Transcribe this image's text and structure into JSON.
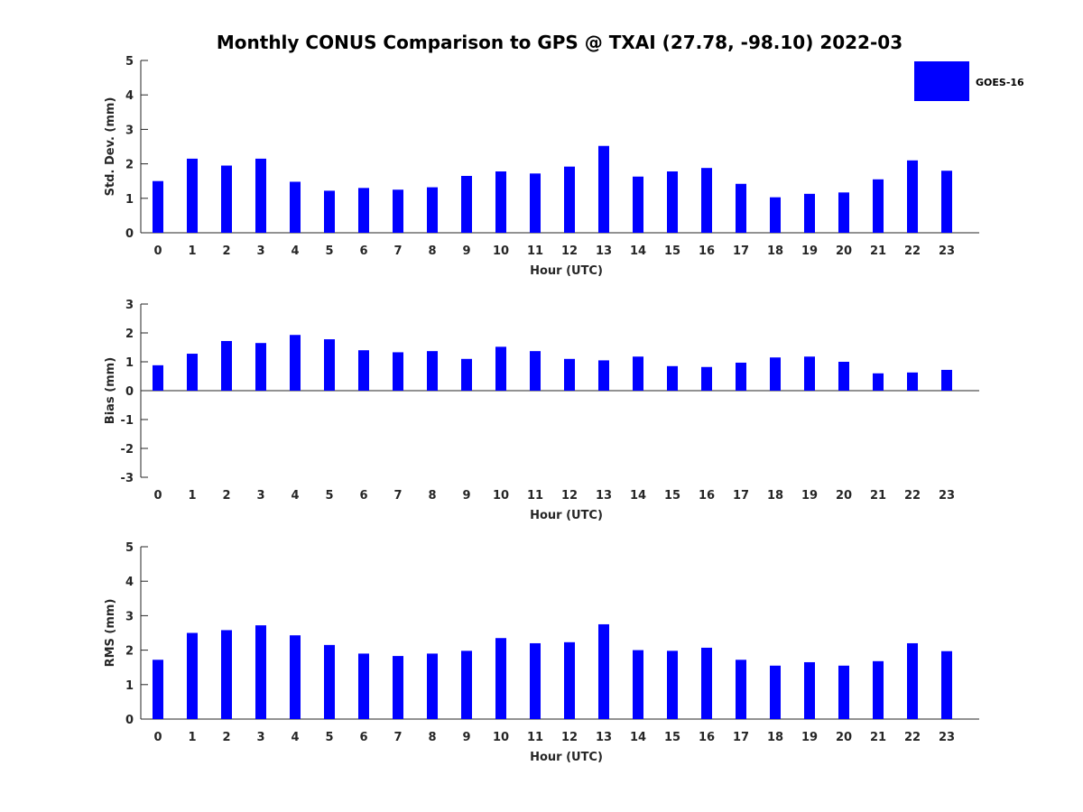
{
  "chart_data": [
    {
      "type": "bar",
      "title": "Monthly CONUS Comparison to GPS @ TXAI (27.78, -98.10) 2022-03",
      "xlabel": "Hour (UTC)",
      "ylabel": "Std. Dev. (mm)",
      "ylim": [
        0,
        5
      ],
      "yticks": [
        "0",
        "1",
        "2",
        "3",
        "4",
        "5"
      ],
      "categories": [
        "0",
        "1",
        "2",
        "3",
        "4",
        "5",
        "6",
        "7",
        "8",
        "9",
        "10",
        "11",
        "12",
        "13",
        "14",
        "15",
        "16",
        "17",
        "18",
        "19",
        "20",
        "21",
        "22",
        "23"
      ],
      "series": [
        {
          "name": "GOES-16",
          "color": "#0000ff",
          "values": [
            1.5,
            2.15,
            1.95,
            2.15,
            1.48,
            1.22,
            1.3,
            1.25,
            1.32,
            1.65,
            1.78,
            1.72,
            1.92,
            2.52,
            1.63,
            1.78,
            1.88,
            1.42,
            1.03,
            1.13,
            1.17,
            1.55,
            2.1,
            1.8
          ]
        }
      ],
      "legend": {
        "position": "top-right",
        "entries": [
          "GOES-16"
        ]
      },
      "grid": false
    },
    {
      "type": "bar",
      "title": "",
      "xlabel": "Hour (UTC)",
      "ylabel": "Bias (mm)",
      "ylim": [
        -3,
        3
      ],
      "yticks": [
        "-3",
        "-2",
        "-1",
        "0",
        "1",
        "2",
        "3"
      ],
      "categories": [
        "0",
        "1",
        "2",
        "3",
        "4",
        "5",
        "6",
        "7",
        "8",
        "9",
        "10",
        "11",
        "12",
        "13",
        "14",
        "15",
        "16",
        "17",
        "18",
        "19",
        "20",
        "21",
        "22",
        "23"
      ],
      "series": [
        {
          "name": "GOES-16",
          "color": "#0000ff",
          "values": [
            0.88,
            1.28,
            1.72,
            1.65,
            1.93,
            1.78,
            1.4,
            1.33,
            1.37,
            1.1,
            1.52,
            1.37,
            1.1,
            1.05,
            1.18,
            0.85,
            0.82,
            0.97,
            1.15,
            1.18,
            1.0,
            0.6,
            0.63,
            0.72
          ]
        }
      ],
      "grid": false
    },
    {
      "type": "bar",
      "title": "",
      "xlabel": "Hour (UTC)",
      "ylabel": "RMS (mm)",
      "ylim": [
        0,
        5
      ],
      "yticks": [
        "0",
        "1",
        "2",
        "3",
        "4",
        "5"
      ],
      "categories": [
        "0",
        "1",
        "2",
        "3",
        "4",
        "5",
        "6",
        "7",
        "8",
        "9",
        "10",
        "11",
        "12",
        "13",
        "14",
        "15",
        "16",
        "17",
        "18",
        "19",
        "20",
        "21",
        "22",
        "23"
      ],
      "series": [
        {
          "name": "GOES-16",
          "color": "#0000ff",
          "values": [
            1.72,
            2.5,
            2.58,
            2.72,
            2.43,
            2.15,
            1.9,
            1.83,
            1.9,
            1.98,
            2.35,
            2.2,
            2.23,
            2.75,
            2.0,
            1.98,
            2.07,
            1.72,
            1.55,
            1.65,
            1.55,
            1.68,
            2.2,
            1.97
          ]
        }
      ],
      "grid": false
    }
  ]
}
